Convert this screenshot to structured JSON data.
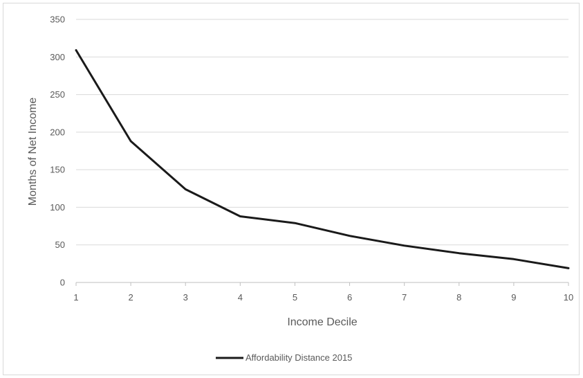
{
  "chart_data": {
    "type": "line",
    "title": "",
    "xlabel": "Income Decile",
    "ylabel": "Months of Net Income",
    "x": [
      1,
      2,
      3,
      4,
      5,
      6,
      7,
      8,
      9,
      10
    ],
    "x_tick_labels": [
      "1",
      "2",
      "3",
      "4",
      "5",
      "6",
      "7",
      "8",
      "9",
      "10"
    ],
    "ylim": [
      0,
      350
    ],
    "y_ticks": [
      0,
      50,
      100,
      150,
      200,
      250,
      300,
      350
    ],
    "y_tick_labels": [
      "0",
      "50",
      "100",
      "150",
      "200",
      "250",
      "300",
      "350"
    ],
    "grid": "horizontal",
    "legend_position": "bottom",
    "series": [
      {
        "name": "Affordability Distance 2015",
        "color": "#1a1a1a",
        "values": [
          309,
          188,
          124,
          88,
          79,
          62,
          49,
          39,
          31,
          19
        ]
      }
    ]
  }
}
